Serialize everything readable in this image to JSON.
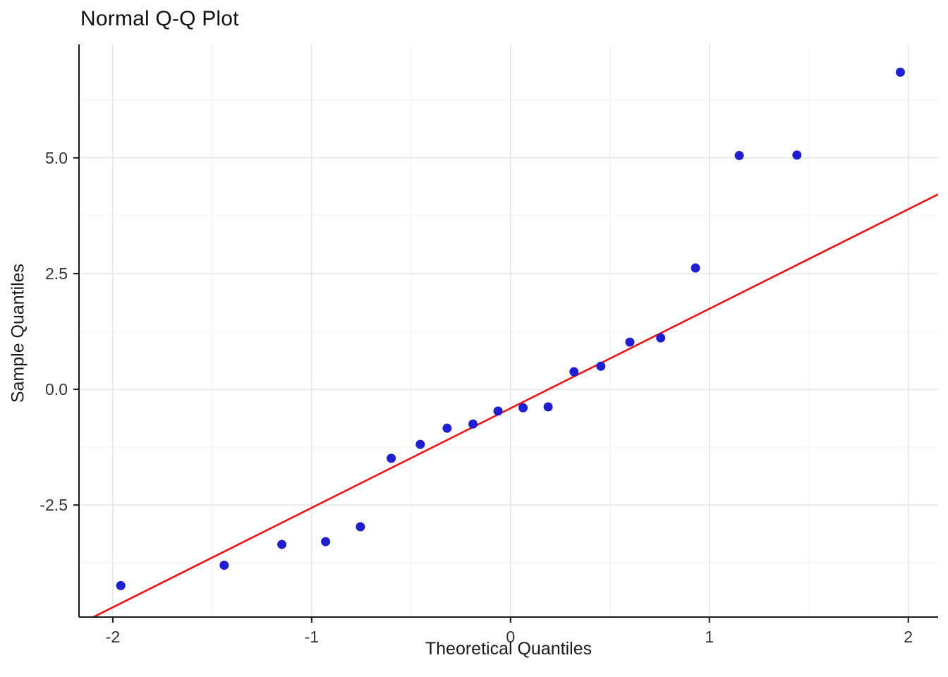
{
  "title": "Normal Q-Q Plot",
  "chart_data": {
    "type": "scatter",
    "title": "Normal Q-Q Plot",
    "xlabel": "Theoretical Quantiles",
    "ylabel": "Sample Quantiles",
    "xlim": [
      -2.17,
      2.15
    ],
    "ylim": [
      -4.92,
      7.45
    ],
    "x_ticks": [
      -2,
      -1,
      0,
      1,
      2
    ],
    "x_tick_labels": [
      "-2",
      "-1",
      "0",
      "1",
      "2"
    ],
    "y_ticks": [
      -2.5,
      0.0,
      2.5,
      5.0
    ],
    "y_tick_labels": [
      "-2.5",
      "0.0",
      "2.5",
      "5.0"
    ],
    "x_minor_grid": [
      -1.5,
      -0.5,
      0.5,
      1.5
    ],
    "y_minor_grid": [
      -3.75,
      -1.25,
      1.25,
      3.75,
      6.25
    ],
    "grid": true,
    "legend": "none",
    "points": [
      [
        -1.96,
        -4.24
      ],
      [
        -1.44,
        -3.8
      ],
      [
        -1.15,
        -3.35
      ],
      [
        -0.93,
        -3.29
      ],
      [
        -0.755,
        -2.97
      ],
      [
        -0.6,
        -1.49
      ],
      [
        -0.454,
        -1.19
      ],
      [
        -0.319,
        -0.84
      ],
      [
        -0.189,
        -0.75
      ],
      [
        -0.063,
        -0.47
      ],
      [
        0.063,
        -0.4
      ],
      [
        0.189,
        -0.38
      ],
      [
        0.319,
        0.38
      ],
      [
        0.454,
        0.5
      ],
      [
        0.6,
        1.02
      ],
      [
        0.755,
        1.11
      ],
      [
        0.93,
        2.62
      ],
      [
        1.15,
        5.05
      ],
      [
        1.44,
        5.06
      ],
      [
        1.96,
        6.85
      ]
    ],
    "reference_line": {
      "slope": 2.15,
      "intercept": -0.41,
      "color": "#ee1111"
    },
    "point_color": "#1f1fd0",
    "colors": {
      "axis": "#1a1a1a",
      "major_grid": "#e3e3e3",
      "minor_grid": "#f0f0f0",
      "tick_label": "#333333",
      "background": "#ffffff"
    }
  }
}
